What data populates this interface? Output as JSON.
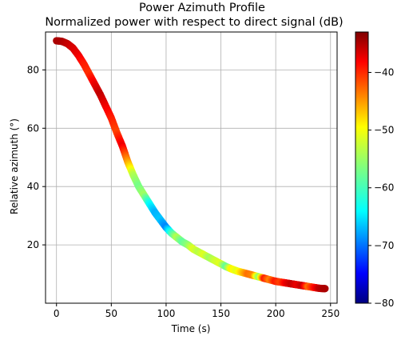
{
  "chart_data": {
    "type": "scatter",
    "title": "Power Azimuth Profile",
    "subtitle": "Normalized power with respect to direct signal (dB)",
    "xlabel": "Time (s)",
    "ylabel": "Relative azimuth (°)",
    "xlim": [
      -10,
      256
    ],
    "ylim": [
      0,
      93
    ],
    "xticks": [
      0,
      50,
      100,
      150,
      200,
      250
    ],
    "yticks": [
      20,
      40,
      60,
      80
    ],
    "grid": true,
    "colormap": "jet",
    "colorbar": {
      "range": [
        -80,
        -33
      ],
      "ticks": [
        -40,
        -50,
        -60,
        -70,
        -80
      ],
      "tick_labels": [
        "−40",
        "−50",
        "−60",
        "−70",
        "−80"
      ]
    },
    "series": [
      {
        "points": [
          [
            0,
            90,
            -35
          ],
          [
            5,
            89.8,
            -35
          ],
          [
            10,
            89,
            -36
          ],
          [
            15,
            87.5,
            -37
          ],
          [
            20,
            85,
            -38
          ],
          [
            25,
            82,
            -40
          ],
          [
            30,
            78.5,
            -41
          ],
          [
            35,
            75,
            -38
          ],
          [
            40,
            71.5,
            -36
          ],
          [
            45,
            67.5,
            -38
          ],
          [
            50,
            63.5,
            -40
          ],
          [
            55,
            58.5,
            -42
          ],
          [
            60,
            54,
            -38
          ],
          [
            65,
            48.5,
            -46
          ],
          [
            70,
            44,
            -54
          ],
          [
            75,
            40,
            -57
          ],
          [
            80,
            37,
            -55
          ],
          [
            85,
            34,
            -62
          ],
          [
            90,
            31,
            -66
          ],
          [
            95,
            28.5,
            -65
          ],
          [
            100,
            26,
            -68
          ],
          [
            105,
            24,
            -60
          ],
          [
            110,
            22.5,
            -54
          ],
          [
            115,
            21,
            -58
          ],
          [
            120,
            20,
            -56
          ],
          [
            125,
            18.5,
            -52
          ],
          [
            130,
            17.5,
            -54
          ],
          [
            135,
            16.5,
            -52
          ],
          [
            140,
            15.5,
            -55
          ],
          [
            145,
            14.5,
            -53
          ],
          [
            150,
            13.5,
            -52
          ],
          [
            155,
            12.5,
            -58
          ],
          [
            160,
            11.7,
            -50
          ],
          [
            165,
            11,
            -52
          ],
          [
            170,
            10.5,
            -48
          ],
          [
            175,
            10,
            -44
          ],
          [
            180,
            9.5,
            -45
          ],
          [
            185,
            9,
            -56
          ],
          [
            190,
            8.5,
            -40
          ],
          [
            195,
            8,
            -45
          ],
          [
            200,
            7.5,
            -40
          ],
          [
            205,
            7.2,
            -42
          ],
          [
            210,
            6.9,
            -38
          ],
          [
            215,
            6.6,
            -36
          ],
          [
            220,
            6.3,
            -38
          ],
          [
            225,
            6,
            -36
          ],
          [
            230,
            5.7,
            -44
          ],
          [
            235,
            5.4,
            -40
          ],
          [
            240,
            5.1,
            -36
          ],
          [
            245,
            5,
            -35
          ]
        ]
      }
    ]
  }
}
